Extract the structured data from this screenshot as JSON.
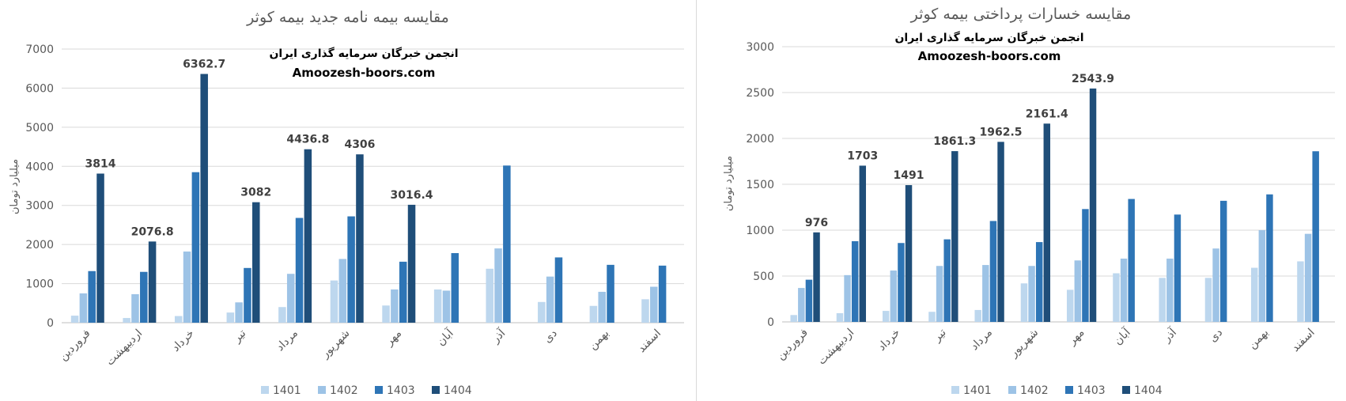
{
  "chart_data": [
    {
      "type": "bar",
      "title": "مقایسه بیمه نامه جدید بیمه کوثر",
      "watermark": [
        "انجمن خبرگان سرمایه گذاری ایران",
        "Amoozesh-boors.com"
      ],
      "ylabel": "میلیارد تومان",
      "ylim": [
        0,
        7000
      ],
      "yticks": [
        0,
        1000,
        2000,
        3000,
        4000,
        5000,
        6000,
        7000
      ],
      "grid": true,
      "legend_position": "bottom",
      "categories": [
        "فروردین",
        "اردیبهشت",
        "خرداد",
        "تیر",
        "مرداد",
        "شهریور",
        "مهر",
        "آبان",
        "آذر",
        "دی",
        "بهمن",
        "اسفند"
      ],
      "series": [
        {
          "name": "1401",
          "color": "#bdd7ee",
          "values": [
            180,
            120,
            170,
            260,
            400,
            1080,
            440,
            850,
            1380,
            530,
            430,
            600
          ]
        },
        {
          "name": "1402",
          "color": "#9dc3e6",
          "values": [
            750,
            730,
            1820,
            520,
            1250,
            1630,
            850,
            820,
            1900,
            1180,
            790,
            920
          ]
        },
        {
          "name": "1403",
          "color": "#2e75b6",
          "values": [
            1320,
            1300,
            3850,
            1400,
            2680,
            2720,
            1560,
            1780,
            4020,
            1670,
            1480,
            1460
          ]
        },
        {
          "name": "1404",
          "color": "#1f4e79",
          "values": [
            3814,
            2076.8,
            6362.7,
            3082,
            4436.8,
            4306,
            3016.4,
            null,
            null,
            null,
            null,
            null
          ]
        }
      ],
      "data_labels": [
        {
          "series": "1404",
          "category": "فروردین",
          "text": "3814"
        },
        {
          "series": "1404",
          "category": "اردیبهشت",
          "text": "2076.8"
        },
        {
          "series": "1404",
          "category": "خرداد",
          "text": "6362.7"
        },
        {
          "series": "1404",
          "category": "تیر",
          "text": "3082"
        },
        {
          "series": "1404",
          "category": "مرداد",
          "text": "4436.8"
        },
        {
          "series": "1404",
          "category": "شهریور",
          "text": "4306"
        },
        {
          "series": "1404",
          "category": "مهر",
          "text": "3016.4"
        }
      ]
    },
    {
      "type": "bar",
      "title": "مقایسه خسارات پرداختی بیمه کوثر",
      "watermark": [
        "انجمن خبرگان سرمایه گذاری ایران",
        "Amoozesh-boors.com"
      ],
      "ylabel": "میلیارد تومان",
      "ylim": [
        0,
        3000
      ],
      "yticks": [
        0,
        500,
        1000,
        1500,
        2000,
        2500,
        3000
      ],
      "grid": true,
      "legend_position": "bottom",
      "categories": [
        "فروردین",
        "اردیبهشت",
        "خرداد",
        "تیر",
        "مرداد",
        "شهریور",
        "مهر",
        "آبان",
        "آذر",
        "دی",
        "بهمن",
        "اسفند"
      ],
      "series": [
        {
          "name": "1401",
          "color": "#bdd7ee",
          "values": [
            75,
            95,
            120,
            110,
            130,
            420,
            350,
            530,
            480,
            480,
            590,
            660
          ]
        },
        {
          "name": "1402",
          "color": "#9dc3e6",
          "values": [
            370,
            510,
            560,
            610,
            620,
            610,
            670,
            690,
            690,
            800,
            1000,
            960
          ]
        },
        {
          "name": "1403",
          "color": "#2e75b6",
          "values": [
            460,
            880,
            860,
            900,
            1100,
            870,
            1230,
            1340,
            1170,
            1320,
            1390,
            1860
          ]
        },
        {
          "name": "1404",
          "color": "#1f4e79",
          "values": [
            976,
            1703,
            1491,
            1861.3,
            1962.5,
            2161.4,
            2543.9,
            null,
            null,
            null,
            null,
            null
          ]
        }
      ],
      "data_labels": [
        {
          "series": "1404",
          "category": "فروردین",
          "text": "976"
        },
        {
          "series": "1404",
          "category": "اردیبهشت",
          "text": "1703"
        },
        {
          "series": "1404",
          "category": "خرداد",
          "text": "1491"
        },
        {
          "series": "1404",
          "category": "تیر",
          "text": "1861.3"
        },
        {
          "series": "1404",
          "category": "مرداد",
          "text": "1962.5"
        },
        {
          "series": "1404",
          "category": "شهریور",
          "text": "2161.4"
        },
        {
          "series": "1404",
          "category": "مهر",
          "text": "2543.9"
        }
      ]
    }
  ]
}
